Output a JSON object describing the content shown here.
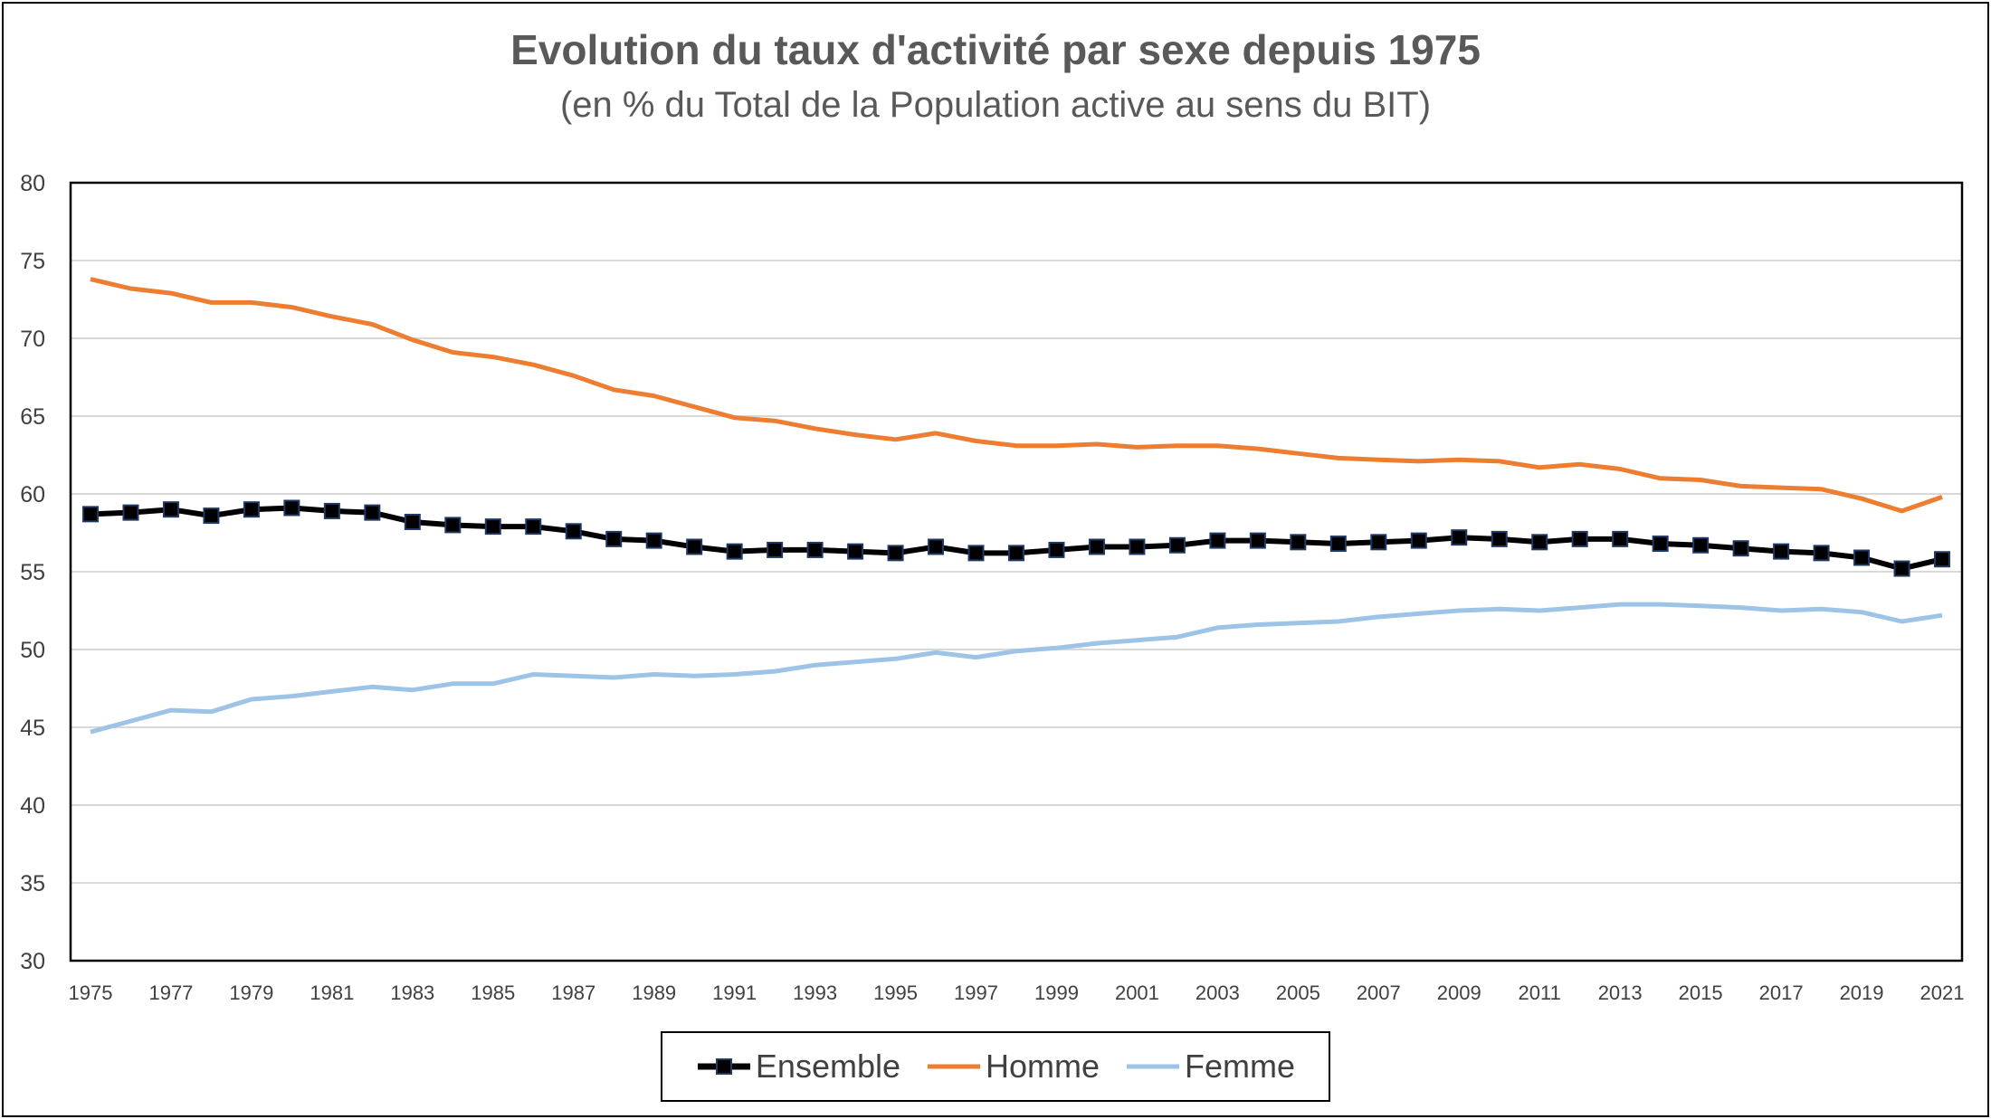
{
  "chart_data": {
    "type": "line",
    "title": "Evolution du taux d'activité par sexe depuis 1975",
    "subtitle": "(en % du Total de la Population active au sens du BIT)",
    "xlabel": "",
    "ylabel": "",
    "ylim": [
      30,
      80
    ],
    "y_ticks": [
      "80",
      "75",
      "70",
      "65",
      "60",
      "55",
      "50",
      "45",
      "40",
      "35",
      "30"
    ],
    "x_tick_labels": [
      "1975",
      "1977",
      "1979",
      "1981",
      "1983",
      "1985",
      "1987",
      "1989",
      "1991",
      "1993",
      "1995",
      "1997",
      "1999",
      "2001",
      "2003",
      "2005",
      "2007",
      "2009",
      "2011",
      "2013",
      "2015",
      "2017",
      "2019",
      "2021"
    ],
    "x": [
      1975,
      1976,
      1977,
      1978,
      1979,
      1980,
      1981,
      1982,
      1983,
      1984,
      1985,
      1986,
      1987,
      1988,
      1989,
      1990,
      1991,
      1992,
      1993,
      1994,
      1995,
      1996,
      1997,
      1998,
      1999,
      2000,
      2001,
      2002,
      2003,
      2004,
      2005,
      2006,
      2007,
      2008,
      2009,
      2010,
      2011,
      2012,
      2013,
      2014,
      2015,
      2016,
      2017,
      2018,
      2019,
      2020,
      2021
    ],
    "grid": true,
    "legend_position": "bottom",
    "series": [
      {
        "name": "Ensemble",
        "color": "#000000",
        "marker": "square",
        "values": [
          58.7,
          58.8,
          59.0,
          58.6,
          59.0,
          59.1,
          58.9,
          58.8,
          58.2,
          58.0,
          57.9,
          57.9,
          57.6,
          57.1,
          57.0,
          56.6,
          56.3,
          56.4,
          56.4,
          56.3,
          56.2,
          56.6,
          56.2,
          56.2,
          56.4,
          56.6,
          56.6,
          56.7,
          57.0,
          57.0,
          56.9,
          56.8,
          56.9,
          57.0,
          57.2,
          57.1,
          56.9,
          57.1,
          57.1,
          56.8,
          56.7,
          56.5,
          56.3,
          56.2,
          55.9,
          55.2,
          55.8
        ]
      },
      {
        "name": "Homme",
        "color": "#ED7D31",
        "marker": "none",
        "values": [
          73.8,
          73.2,
          72.9,
          72.3,
          72.3,
          72.0,
          71.4,
          70.9,
          69.9,
          69.1,
          68.8,
          68.3,
          67.6,
          66.7,
          66.3,
          65.6,
          64.9,
          64.7,
          64.2,
          63.8,
          63.5,
          63.9,
          63.4,
          63.1,
          63.1,
          63.2,
          63.0,
          63.1,
          63.1,
          62.9,
          62.6,
          62.3,
          62.2,
          62.1,
          62.2,
          62.1,
          61.7,
          61.9,
          61.6,
          61.0,
          60.9,
          60.5,
          60.4,
          60.3,
          59.7,
          58.9,
          59.8
        ]
      },
      {
        "name": "Femme",
        "color": "#9DC3E6",
        "marker": "none",
        "values": [
          44.7,
          45.4,
          46.1,
          46.0,
          46.8,
          47.0,
          47.3,
          47.6,
          47.4,
          47.8,
          47.8,
          48.4,
          48.3,
          48.2,
          48.4,
          48.3,
          48.4,
          48.6,
          49.0,
          49.2,
          49.4,
          49.8,
          49.5,
          49.9,
          50.1,
          50.4,
          50.6,
          50.8,
          51.4,
          51.6,
          51.7,
          51.8,
          52.1,
          52.3,
          52.5,
          52.6,
          52.5,
          52.7,
          52.9,
          52.9,
          52.8,
          52.7,
          52.5,
          52.6,
          52.4,
          51.8,
          52.2
        ]
      }
    ]
  }
}
